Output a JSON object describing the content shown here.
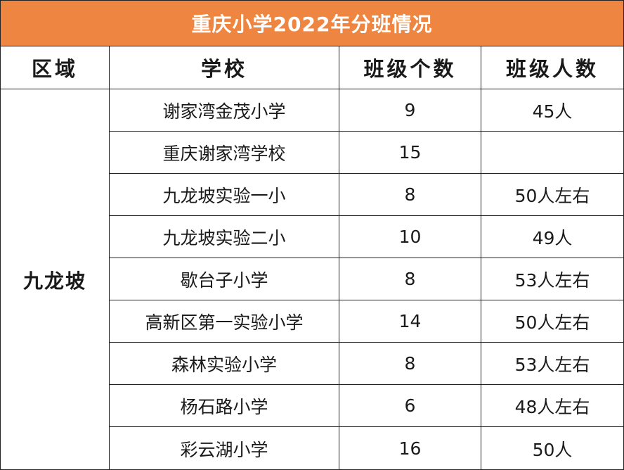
{
  "title": "重庆小学2022年分班情况",
  "headers": [
    "区域",
    "学校",
    "班级个数",
    "班级人数"
  ],
  "region": "九龙坡",
  "rows": [
    {
      "school": "谢家湾金茂小学",
      "classes": "9",
      "size": "45人"
    },
    {
      "school": "重庆谢家湾学校",
      "classes": "15",
      "size": ""
    },
    {
      "school": "九龙坡实验一小",
      "classes": "8",
      "size": "50人左右"
    },
    {
      "school": "九龙坡实验二小",
      "classes": "10",
      "size": "49人"
    },
    {
      "school": "歇台子小学",
      "classes": "8",
      "size": "53人左右"
    },
    {
      "school": "高新区第一实验小学",
      "classes": "14",
      "size": "50人左右"
    },
    {
      "school": "森林实验小学",
      "classes": "8",
      "size": "53人左右"
    },
    {
      "school": "杨石路小学",
      "classes": "6",
      "size": "48人左右"
    },
    {
      "school": "彩云湖小学",
      "classes": "16",
      "size": "50人"
    }
  ]
}
